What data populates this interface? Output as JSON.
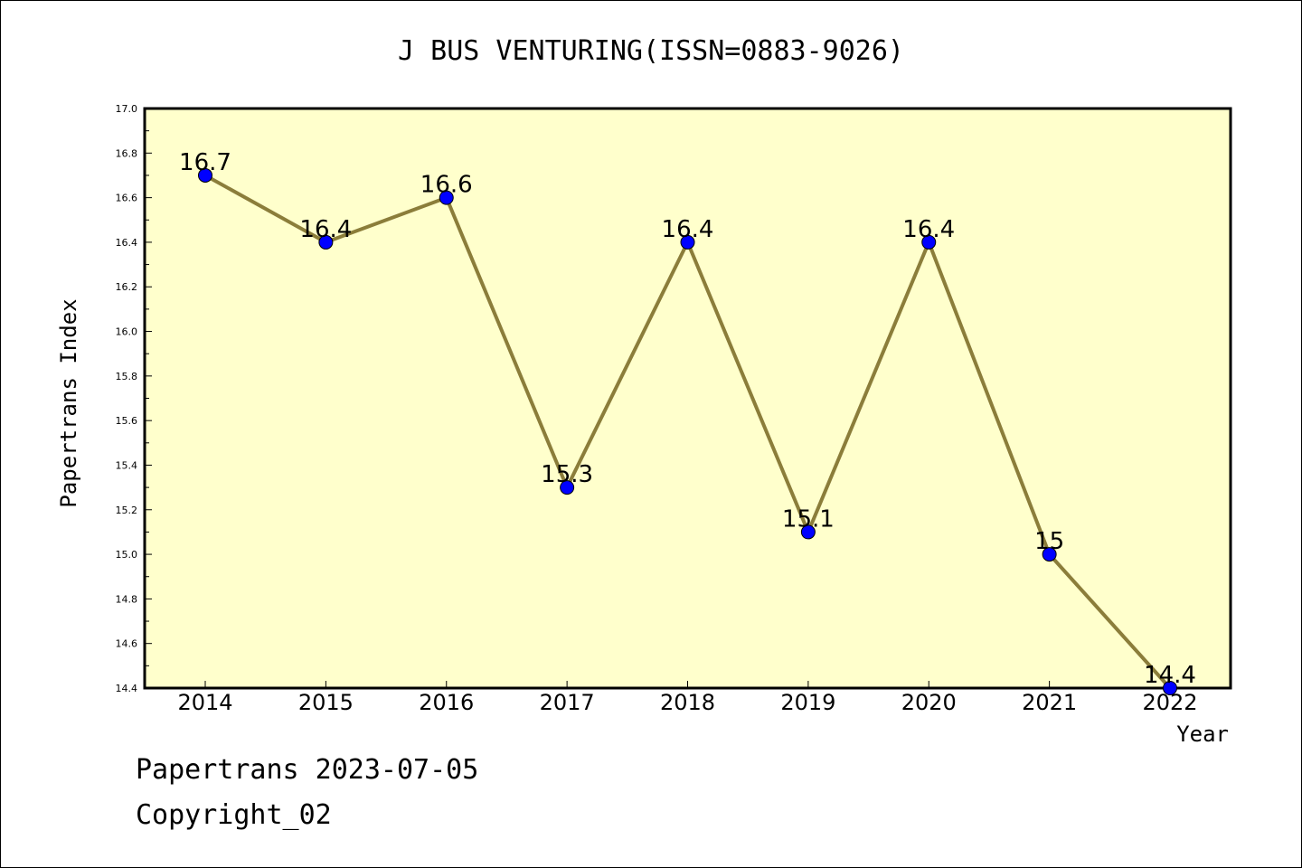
{
  "chart_data": {
    "type": "line",
    "title": "J BUS VENTURING(ISSN=0883-9026)",
    "xlabel": "Year",
    "ylabel": "Papertrans Index",
    "x": [
      "2014",
      "2015",
      "2016",
      "2017",
      "2018",
      "2019",
      "2020",
      "2021",
      "2022"
    ],
    "values": [
      16.7,
      16.4,
      16.6,
      15.3,
      16.4,
      15.1,
      16.4,
      15.0,
      14.4
    ],
    "data_labels": [
      "16.7",
      "16.4",
      "16.6",
      "15.3",
      "16.4",
      "15.1",
      "16.4",
      "15",
      "14.4"
    ],
    "ylim": [
      14.4,
      17.0
    ],
    "yticks": [
      "14.4",
      "14.6",
      "14.8",
      "15.0",
      "15.2",
      "15.4",
      "15.6",
      "15.8",
      "16.0",
      "16.2",
      "16.4",
      "16.6",
      "16.8",
      "17.0"
    ],
    "grid": false,
    "legend": "none",
    "colors": {
      "plot_background": "#ffffcc",
      "line": "#8b7d3a",
      "marker": "#0000ff"
    }
  },
  "footer": {
    "line1": "Papertrans 2023-07-05",
    "line2": "Copyright_02"
  }
}
